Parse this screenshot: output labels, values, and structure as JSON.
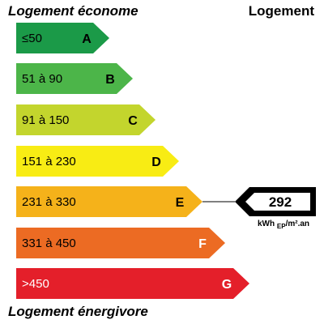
{
  "header": {
    "top_left": "Logement économe",
    "top_right": "Logement"
  },
  "footer": {
    "bottom_left": "Logement énergivore"
  },
  "classes": [
    {
      "range": "≤50",
      "letter": "A",
      "color": "#1b9a48"
    },
    {
      "range": "51 à 90",
      "letter": "B",
      "color": "#4cb549"
    },
    {
      "range": "91 à 150",
      "letter": "C",
      "color": "#c3d52d"
    },
    {
      "range": "151 à 230",
      "letter": "D",
      "color": "#f8ec14"
    },
    {
      "range": "231 à 330",
      "letter": "E",
      "color": "#f5b21a"
    },
    {
      "range": "331 à 450",
      "letter": "F",
      "color": "#ec6b23"
    },
    {
      "range": ">450",
      "letter": "G",
      "color": "#e41f2a"
    }
  ],
  "indicator": {
    "value": "292",
    "unit_main": "kWh",
    "unit_sub": "EP",
    "unit_tail": "/m².an",
    "class": "E"
  }
}
